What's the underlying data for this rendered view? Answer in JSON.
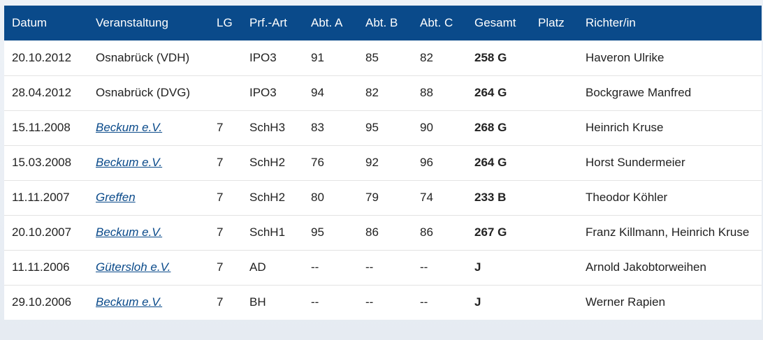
{
  "table": {
    "headers": {
      "datum": "Datum",
      "veranstaltung": "Veranstaltung",
      "lg": "LG",
      "prf_art": "Prf.-Art",
      "abt_a": "Abt. A",
      "abt_b": "Abt. B",
      "abt_c": "Abt. C",
      "gesamt": "Gesamt",
      "platz": "Platz",
      "richter": "Richter/in"
    },
    "rows": [
      {
        "datum": "20.10.2012",
        "veranstaltung": "Osnabrück (VDH)",
        "is_link": false,
        "lg": "",
        "prf_art": "IPO3",
        "abt_a": "91",
        "abt_b": "85",
        "abt_c": "82",
        "gesamt": "258 G",
        "platz": "",
        "richter": "Haveron Ulrike"
      },
      {
        "datum": "28.04.2012",
        "veranstaltung": "Osnabrück (DVG)",
        "is_link": false,
        "lg": "",
        "prf_art": "IPO3",
        "abt_a": "94",
        "abt_b": "82",
        "abt_c": "88",
        "gesamt": "264 G",
        "platz": "",
        "richter": "Bockgrawe Manfred"
      },
      {
        "datum": "15.11.2008",
        "veranstaltung": "Beckum e.V.",
        "is_link": true,
        "lg": "7",
        "prf_art": "SchH3",
        "abt_a": "83",
        "abt_b": "95",
        "abt_c": "90",
        "gesamt": "268 G",
        "platz": "",
        "richter": "Heinrich Kruse"
      },
      {
        "datum": "15.03.2008",
        "veranstaltung": "Beckum e.V.",
        "is_link": true,
        "lg": "7",
        "prf_art": "SchH2",
        "abt_a": "76",
        "abt_b": "92",
        "abt_c": "96",
        "gesamt": "264 G",
        "platz": "",
        "richter": "Horst Sundermeier"
      },
      {
        "datum": "11.11.2007",
        "veranstaltung": "Greffen",
        "is_link": true,
        "lg": "7",
        "prf_art": "SchH2",
        "abt_a": "80",
        "abt_b": "79",
        "abt_c": "74",
        "gesamt": "233 B",
        "platz": "",
        "richter": "Theodor Köhler"
      },
      {
        "datum": "20.10.2007",
        "veranstaltung": "Beckum e.V.",
        "is_link": true,
        "lg": "7",
        "prf_art": "SchH1",
        "abt_a": "95",
        "abt_b": "86",
        "abt_c": "86",
        "gesamt": "267 G",
        "platz": "",
        "richter": "Franz Killmann, Heinrich Kruse"
      },
      {
        "datum": "11.11.2006",
        "veranstaltung": "Gütersloh e.V.",
        "is_link": true,
        "lg": "7",
        "prf_art": "AD",
        "abt_a": "--",
        "abt_b": "--",
        "abt_c": "--",
        "gesamt": "J",
        "platz": "",
        "richter": "Arnold Jakobtorweihen"
      },
      {
        "datum": "29.10.2006",
        "veranstaltung": "Beckum e.V.",
        "is_link": true,
        "lg": "7",
        "prf_art": "BH",
        "abt_a": "--",
        "abt_b": "--",
        "abt_c": "--",
        "gesamt": "J",
        "platz": "",
        "richter": "Werner Rapien"
      }
    ]
  },
  "colors": {
    "header_bg": "#0a4a8a",
    "link": "#0a4a8a"
  }
}
